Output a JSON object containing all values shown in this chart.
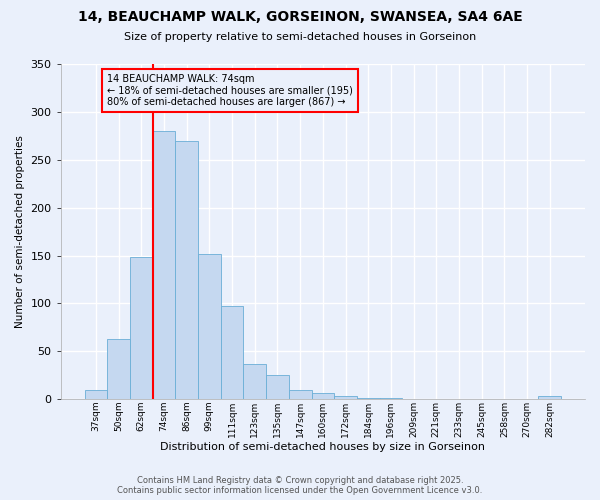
{
  "title": "14, BEAUCHAMP WALK, GORSEINON, SWANSEA, SA4 6AE",
  "subtitle": "Size of property relative to semi-detached houses in Gorseinon",
  "xlabel": "Distribution of semi-detached houses by size in Gorseinon",
  "ylabel": "Number of semi-detached properties",
  "categories": [
    "37sqm",
    "50sqm",
    "62sqm",
    "74sqm",
    "86sqm",
    "99sqm",
    "111sqm",
    "123sqm",
    "135sqm",
    "147sqm",
    "160sqm",
    "172sqm",
    "184sqm",
    "196sqm",
    "209sqm",
    "221sqm",
    "233sqm",
    "245sqm",
    "258sqm",
    "270sqm",
    "282sqm"
  ],
  "values": [
    10,
    63,
    148,
    280,
    270,
    152,
    97,
    37,
    25,
    10,
    6,
    3,
    1,
    1,
    0,
    0,
    0,
    0,
    0,
    0,
    3
  ],
  "bar_color": "#c5d8f0",
  "bar_edge_color": "#6aaed6",
  "red_line_index": 3,
  "annotation_line1": "14 BEAUCHAMP WALK: 74sqm",
  "annotation_line2": "← 18% of semi-detached houses are smaller (195)",
  "annotation_line3": "80% of semi-detached houses are larger (867) →",
  "ylim": [
    0,
    350
  ],
  "yticks": [
    0,
    50,
    100,
    150,
    200,
    250,
    300,
    350
  ],
  "bg_color": "#eaf0fb",
  "grid_color": "#d0d8ea",
  "footer_line1": "Contains HM Land Registry data © Crown copyright and database right 2025.",
  "footer_line2": "Contains public sector information licensed under the Open Government Licence v3.0."
}
